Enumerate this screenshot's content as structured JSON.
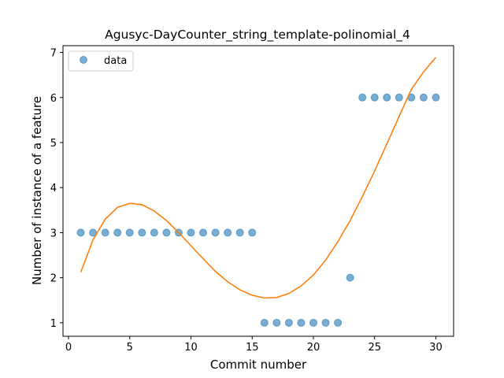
{
  "chart_data": {
    "type": "scatter",
    "title": "Agusyc-DayCounter_string_template-polinomial_4",
    "xlabel": "Commit number",
    "ylabel": "Number of instance of a feature",
    "xlim": [
      -0.45,
      31.45
    ],
    "ylim": [
      0.7,
      7.15
    ],
    "xticks": [
      0,
      5,
      10,
      15,
      20,
      25,
      30
    ],
    "yticks": [
      1,
      2,
      3,
      4,
      5,
      6,
      7
    ],
    "legend": {
      "placement": "top-left",
      "entries": [
        "data"
      ]
    },
    "grid": false,
    "series": [
      {
        "name": "data",
        "kind": "scatter",
        "color": "#1f77b4",
        "x": [
          1,
          2,
          3,
          4,
          5,
          6,
          7,
          8,
          9,
          10,
          11,
          12,
          13,
          14,
          15,
          16,
          17,
          18,
          19,
          20,
          21,
          22,
          23,
          24,
          25,
          26,
          27,
          28,
          29,
          30
        ],
        "y": [
          3,
          3,
          3,
          3,
          3,
          3,
          3,
          3,
          3,
          3,
          3,
          3,
          3,
          3,
          3,
          1,
          1,
          1,
          1,
          1,
          1,
          1,
          2,
          6,
          6,
          6,
          6,
          6,
          6,
          6
        ]
      },
      {
        "kind": "line",
        "color": "#ff7f0e",
        "x": [
          1,
          2,
          3,
          4,
          5,
          6,
          7,
          8,
          9,
          10,
          11,
          12,
          13,
          14,
          15,
          16,
          17,
          18,
          19,
          20,
          21,
          22,
          23,
          24,
          25,
          26,
          27,
          28,
          29,
          30
        ],
        "y": [
          2.12,
          2.84,
          3.3,
          3.56,
          3.65,
          3.62,
          3.48,
          3.27,
          3.0,
          2.71,
          2.42,
          2.14,
          1.91,
          1.73,
          1.61,
          1.55,
          1.56,
          1.65,
          1.82,
          2.06,
          2.39,
          2.8,
          3.27,
          3.8,
          4.37,
          4.97,
          5.58,
          6.18,
          6.57,
          6.89
        ]
      }
    ]
  }
}
